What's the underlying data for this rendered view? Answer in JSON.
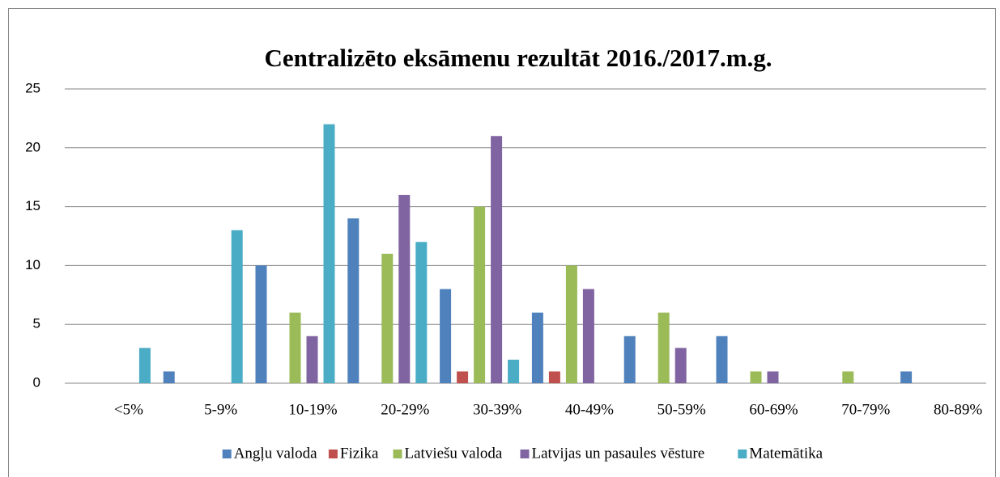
{
  "chart_data": {
    "type": "bar",
    "title": "Centralizēto eksāmenu rezultāt 2016./2017.m.g.",
    "categories": [
      "<5%",
      "5-9%",
      "10-19%",
      "20-29%",
      "30-39%",
      "40-49%",
      "50-59%",
      "60-69%",
      "70-79%",
      "80-89%"
    ],
    "series": [
      {
        "name": "Angļu valoda",
        "color": "#4f81bd",
        "values": [
          0,
          1,
          10,
          14,
          8,
          6,
          4,
          4,
          0,
          1
        ]
      },
      {
        "name": "Fizika",
        "color": "#c0504d",
        "values": [
          0,
          0,
          0,
          0,
          1,
          1,
          0,
          0,
          0,
          0
        ]
      },
      {
        "name": "Latviešu valoda",
        "color": "#9bbb59",
        "values": [
          0,
          0,
          6,
          11,
          15,
          10,
          6,
          1,
          1,
          0
        ]
      },
      {
        "name": "Latvijas un pasaules vēsture",
        "color": "#8064a2",
        "values": [
          0,
          0,
          4,
          16,
          21,
          8,
          3,
          1,
          0,
          0
        ]
      },
      {
        "name": "Matemātika",
        "color": "#4bacc6",
        "values": [
          3,
          13,
          22,
          12,
          2,
          0,
          0,
          0,
          0,
          0
        ]
      }
    ],
    "ylim": [
      0,
      25
    ],
    "yticks": [
      0,
      5,
      10,
      15,
      20,
      25
    ],
    "grid": true,
    "legend": "bottom"
  }
}
